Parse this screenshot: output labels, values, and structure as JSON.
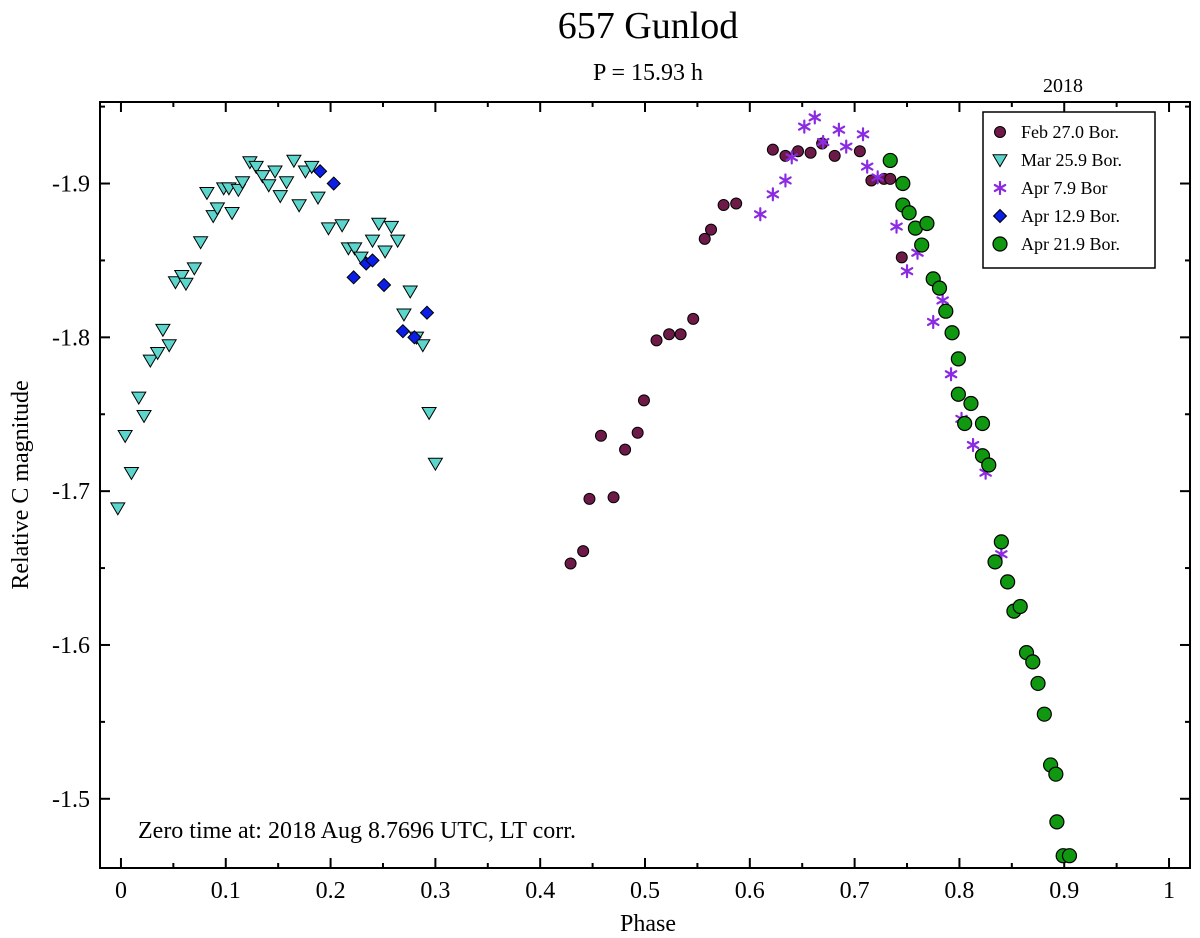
{
  "chart_data": {
    "type": "scatter",
    "title": "657 Gunlod",
    "subtitle": "P = 15.93 h",
    "year_label": "2018",
    "xlabel": "Phase",
    "ylabel": "Relative C magnitude",
    "annotation": "Zero time at: 2018 Aug 8.7696 UTC, LT corr.",
    "xlim": [
      -0.02,
      1.02
    ],
    "ylim": [
      -1.455,
      -1.953
    ],
    "y_inverted": true,
    "x_ticks": [
      0,
      0.1,
      0.2,
      0.3,
      0.4,
      0.5,
      0.6,
      0.7,
      0.8,
      0.9,
      1
    ],
    "x_tick_labels": [
      "0",
      "0.1",
      "0.2",
      "0.3",
      "0.4",
      "0.5",
      "0.6",
      "0.7",
      "0.8",
      "0.9",
      "1"
    ],
    "y_ticks": [
      -1.5,
      -1.6,
      -1.7,
      -1.8,
      -1.9
    ],
    "y_tick_labels": [
      "-1.5",
      "-1.6",
      "-1.7",
      "-1.8",
      "-1.9"
    ],
    "legend_position": "top-right",
    "series": [
      {
        "name": "Feb 27.0 Bor.",
        "marker": "circle",
        "color": "#6e1a48",
        "points": [
          [
            0.429,
            -1.653
          ],
          [
            0.441,
            -1.661
          ],
          [
            0.447,
            -1.695
          ],
          [
            0.458,
            -1.736
          ],
          [
            0.47,
            -1.696
          ],
          [
            0.481,
            -1.727
          ],
          [
            0.493,
            -1.738
          ],
          [
            0.499,
            -1.759
          ],
          [
            0.511,
            -1.798
          ],
          [
            0.523,
            -1.802
          ],
          [
            0.534,
            -1.802
          ],
          [
            0.546,
            -1.812
          ],
          [
            0.557,
            -1.864
          ],
          [
            0.563,
            -1.87
          ],
          [
            0.575,
            -1.886
          ],
          [
            0.587,
            -1.887
          ],
          [
            0.622,
            -1.922
          ],
          [
            0.634,
            -1.918
          ],
          [
            0.646,
            -1.921
          ],
          [
            0.658,
            -1.92
          ],
          [
            0.669,
            -1.926
          ],
          [
            0.681,
            -1.918
          ],
          [
            0.705,
            -1.921
          ],
          [
            0.716,
            -1.902
          ],
          [
            0.728,
            -1.903
          ],
          [
            0.734,
            -1.903
          ],
          [
            0.745,
            -1.852
          ]
        ]
      },
      {
        "name": "Mar 25.9 Bor.",
        "marker": "triangle-down",
        "color": "#5cd6cc",
        "points": [
          [
            -0.003,
            -1.689
          ],
          [
            0.004,
            -1.736
          ],
          [
            0.01,
            -1.712
          ],
          [
            0.017,
            -1.761
          ],
          [
            0.022,
            -1.749
          ],
          [
            0.028,
            -1.785
          ],
          [
            0.035,
            -1.79
          ],
          [
            0.04,
            -1.805
          ],
          [
            0.046,
            -1.795
          ],
          [
            0.052,
            -1.836
          ],
          [
            0.058,
            -1.84
          ],
          [
            0.062,
            -1.835
          ],
          [
            0.07,
            -1.845
          ],
          [
            0.076,
            -1.862
          ],
          [
            0.082,
            -1.894
          ],
          [
            0.088,
            -1.879
          ],
          [
            0.092,
            -1.884
          ],
          [
            0.098,
            -1.897
          ],
          [
            0.103,
            -1.897
          ],
          [
            0.106,
            -1.881
          ],
          [
            0.112,
            -1.896
          ],
          [
            0.116,
            -1.901
          ],
          [
            0.123,
            -1.914
          ],
          [
            0.129,
            -1.911
          ],
          [
            0.135,
            -1.905
          ],
          [
            0.141,
            -1.899
          ],
          [
            0.147,
            -1.908
          ],
          [
            0.152,
            -1.892
          ],
          [
            0.158,
            -1.901
          ],
          [
            0.165,
            -1.915
          ],
          [
            0.17,
            -1.886
          ],
          [
            0.176,
            -1.908
          ],
          [
            0.182,
            -1.911
          ],
          [
            0.188,
            -1.891
          ],
          [
            0.198,
            -1.871
          ],
          [
            0.211,
            -1.873
          ],
          [
            0.217,
            -1.858
          ],
          [
            0.223,
            -1.858
          ],
          [
            0.229,
            -1.852
          ],
          [
            0.24,
            -1.863
          ],
          [
            0.246,
            -1.874
          ],
          [
            0.252,
            -1.856
          ],
          [
            0.258,
            -1.872
          ],
          [
            0.264,
            -1.863
          ],
          [
            0.27,
            -1.815
          ],
          [
            0.276,
            -1.83
          ],
          [
            0.282,
            -1.8
          ],
          [
            0.288,
            -1.795
          ],
          [
            0.294,
            -1.751
          ],
          [
            0.3,
            -1.718
          ]
        ]
      },
      {
        "name": "Apr 7.9 Bor",
        "marker": "asterisk",
        "color": "#8a2be2",
        "points": [
          [
            0.61,
            -1.88
          ],
          [
            0.622,
            -1.893
          ],
          [
            0.634,
            -1.902
          ],
          [
            0.64,
            -1.917
          ],
          [
            0.652,
            -1.937
          ],
          [
            0.662,
            -1.943
          ],
          [
            0.67,
            -1.927
          ],
          [
            0.685,
            -1.935
          ],
          [
            0.692,
            -1.924
          ],
          [
            0.708,
            -1.932
          ],
          [
            0.712,
            -1.911
          ],
          [
            0.722,
            -1.904
          ],
          [
            0.74,
            -1.872
          ],
          [
            0.75,
            -1.843
          ],
          [
            0.76,
            -1.855
          ],
          [
            0.775,
            -1.81
          ],
          [
            0.784,
            -1.824
          ],
          [
            0.792,
            -1.776
          ],
          [
            0.802,
            -1.747
          ],
          [
            0.813,
            -1.73
          ],
          [
            0.825,
            -1.712
          ],
          [
            0.84,
            -1.659
          ]
        ]
      },
      {
        "name": "Apr 12.9 Bor.",
        "marker": "diamond",
        "color": "#0a1ee6",
        "points": [
          [
            0.19,
            -1.908
          ],
          [
            0.203,
            -1.9
          ],
          [
            0.222,
            -1.839
          ],
          [
            0.234,
            -1.848
          ],
          [
            0.24,
            -1.85
          ],
          [
            0.251,
            -1.834
          ],
          [
            0.269,
            -1.804
          ],
          [
            0.28,
            -1.8
          ],
          [
            0.292,
            -1.816
          ]
        ]
      },
      {
        "name": "Apr 21.9 Bor.",
        "marker": "circle-large",
        "color": "#109810",
        "points": [
          [
            0.734,
            -1.915
          ],
          [
            0.746,
            -1.886
          ],
          [
            0.746,
            -1.9
          ],
          [
            0.752,
            -1.881
          ],
          [
            0.758,
            -1.871
          ],
          [
            0.764,
            -1.86
          ],
          [
            0.769,
            -1.874
          ],
          [
            0.775,
            -1.838
          ],
          [
            0.781,
            -1.832
          ],
          [
            0.787,
            -1.817
          ],
          [
            0.793,
            -1.803
          ],
          [
            0.799,
            -1.786
          ],
          [
            0.799,
            -1.763
          ],
          [
            0.805,
            -1.744
          ],
          [
            0.811,
            -1.757
          ],
          [
            0.822,
            -1.744
          ],
          [
            0.822,
            -1.723
          ],
          [
            0.828,
            -1.717
          ],
          [
            0.834,
            -1.654
          ],
          [
            0.84,
            -1.667
          ],
          [
            0.846,
            -1.641
          ],
          [
            0.852,
            -1.622
          ],
          [
            0.858,
            -1.625
          ],
          [
            0.864,
            -1.595
          ],
          [
            0.87,
            -1.589
          ],
          [
            0.875,
            -1.575
          ],
          [
            0.881,
            -1.555
          ],
          [
            0.887,
            -1.522
          ],
          [
            0.892,
            -1.516
          ],
          [
            0.893,
            -1.485
          ],
          [
            0.899,
            -1.463
          ],
          [
            0.905,
            -1.463
          ]
        ]
      }
    ]
  }
}
